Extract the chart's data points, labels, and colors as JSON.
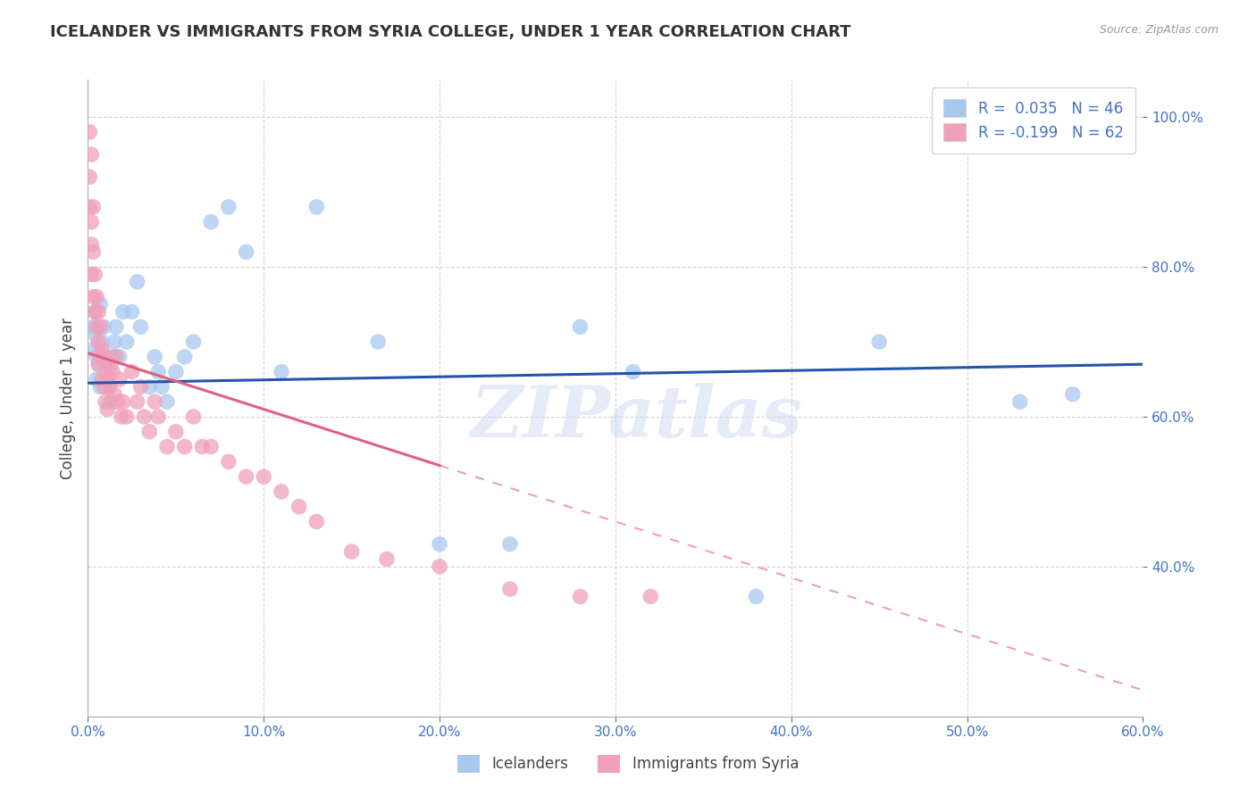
{
  "title": "ICELANDER VS IMMIGRANTS FROM SYRIA COLLEGE, UNDER 1 YEAR CORRELATION CHART",
  "source": "Source: ZipAtlas.com",
  "ylabel": "College, Under 1 year",
  "legend_label1": "Icelanders",
  "legend_label2": "Immigrants from Syria",
  "r1": 0.035,
  "n1": 46,
  "r2": -0.199,
  "n2": 62,
  "color_blue": "#a8c8f0",
  "color_pink": "#f0a0b8",
  "color_blue_line": "#2255aa",
  "color_pink_line": "#e06080",
  "xlim": [
    0.0,
    0.6
  ],
  "ylim": [
    0.2,
    1.05
  ],
  "xticks": [
    0.0,
    0.1,
    0.2,
    0.3,
    0.4,
    0.5,
    0.6
  ],
  "yticks": [
    0.4,
    0.6,
    0.8,
    1.0
  ],
  "blue_x": [
    0.003,
    0.003,
    0.004,
    0.004,
    0.005,
    0.005,
    0.006,
    0.007,
    0.007,
    0.008,
    0.009,
    0.01,
    0.011,
    0.012,
    0.013,
    0.014,
    0.015,
    0.016,
    0.018,
    0.02,
    0.022,
    0.025,
    0.028,
    0.03,
    0.035,
    0.038,
    0.04,
    0.042,
    0.045,
    0.05,
    0.055,
    0.06,
    0.07,
    0.08,
    0.09,
    0.11,
    0.13,
    0.165,
    0.2,
    0.24,
    0.28,
    0.31,
    0.38,
    0.45,
    0.53,
    0.56
  ],
  "blue_y": [
    0.72,
    0.69,
    0.74,
    0.71,
    0.68,
    0.65,
    0.67,
    0.75,
    0.64,
    0.7,
    0.72,
    0.68,
    0.66,
    0.64,
    0.62,
    0.68,
    0.7,
    0.72,
    0.68,
    0.74,
    0.7,
    0.74,
    0.78,
    0.72,
    0.64,
    0.68,
    0.66,
    0.64,
    0.62,
    0.66,
    0.68,
    0.7,
    0.86,
    0.88,
    0.82,
    0.66,
    0.88,
    0.7,
    0.43,
    0.43,
    0.72,
    0.66,
    0.36,
    0.7,
    0.62,
    0.63
  ],
  "pink_x": [
    0.001,
    0.001,
    0.001,
    0.002,
    0.002,
    0.002,
    0.002,
    0.003,
    0.003,
    0.003,
    0.004,
    0.004,
    0.005,
    0.005,
    0.006,
    0.006,
    0.006,
    0.007,
    0.007,
    0.008,
    0.008,
    0.009,
    0.009,
    0.01,
    0.01,
    0.011,
    0.011,
    0.012,
    0.013,
    0.014,
    0.015,
    0.016,
    0.017,
    0.018,
    0.019,
    0.02,
    0.022,
    0.025,
    0.028,
    0.03,
    0.032,
    0.035,
    0.038,
    0.04,
    0.045,
    0.05,
    0.055,
    0.06,
    0.065,
    0.07,
    0.08,
    0.09,
    0.1,
    0.11,
    0.12,
    0.13,
    0.15,
    0.17,
    0.2,
    0.24,
    0.28,
    0.32
  ],
  "pink_y": [
    0.98,
    0.92,
    0.88,
    0.95,
    0.86,
    0.83,
    0.79,
    0.88,
    0.82,
    0.76,
    0.79,
    0.74,
    0.76,
    0.72,
    0.74,
    0.7,
    0.67,
    0.72,
    0.68,
    0.69,
    0.65,
    0.68,
    0.64,
    0.67,
    0.62,
    0.65,
    0.61,
    0.64,
    0.67,
    0.66,
    0.63,
    0.68,
    0.62,
    0.65,
    0.6,
    0.62,
    0.6,
    0.66,
    0.62,
    0.64,
    0.6,
    0.58,
    0.62,
    0.6,
    0.56,
    0.58,
    0.56,
    0.6,
    0.56,
    0.56,
    0.54,
    0.52,
    0.52,
    0.5,
    0.48,
    0.46,
    0.42,
    0.41,
    0.4,
    0.37,
    0.36,
    0.36
  ],
  "watermark": "ZIPatlas",
  "background_color": "#ffffff",
  "grid_color": "#d0d0d0",
  "blue_line_x0": 0.0,
  "blue_line_x1": 0.6,
  "blue_line_y0": 0.645,
  "blue_line_y1": 0.67,
  "pink_line_x0": 0.0,
  "pink_line_x1": 0.6,
  "pink_line_y0": 0.685,
  "pink_line_y1": 0.235
}
